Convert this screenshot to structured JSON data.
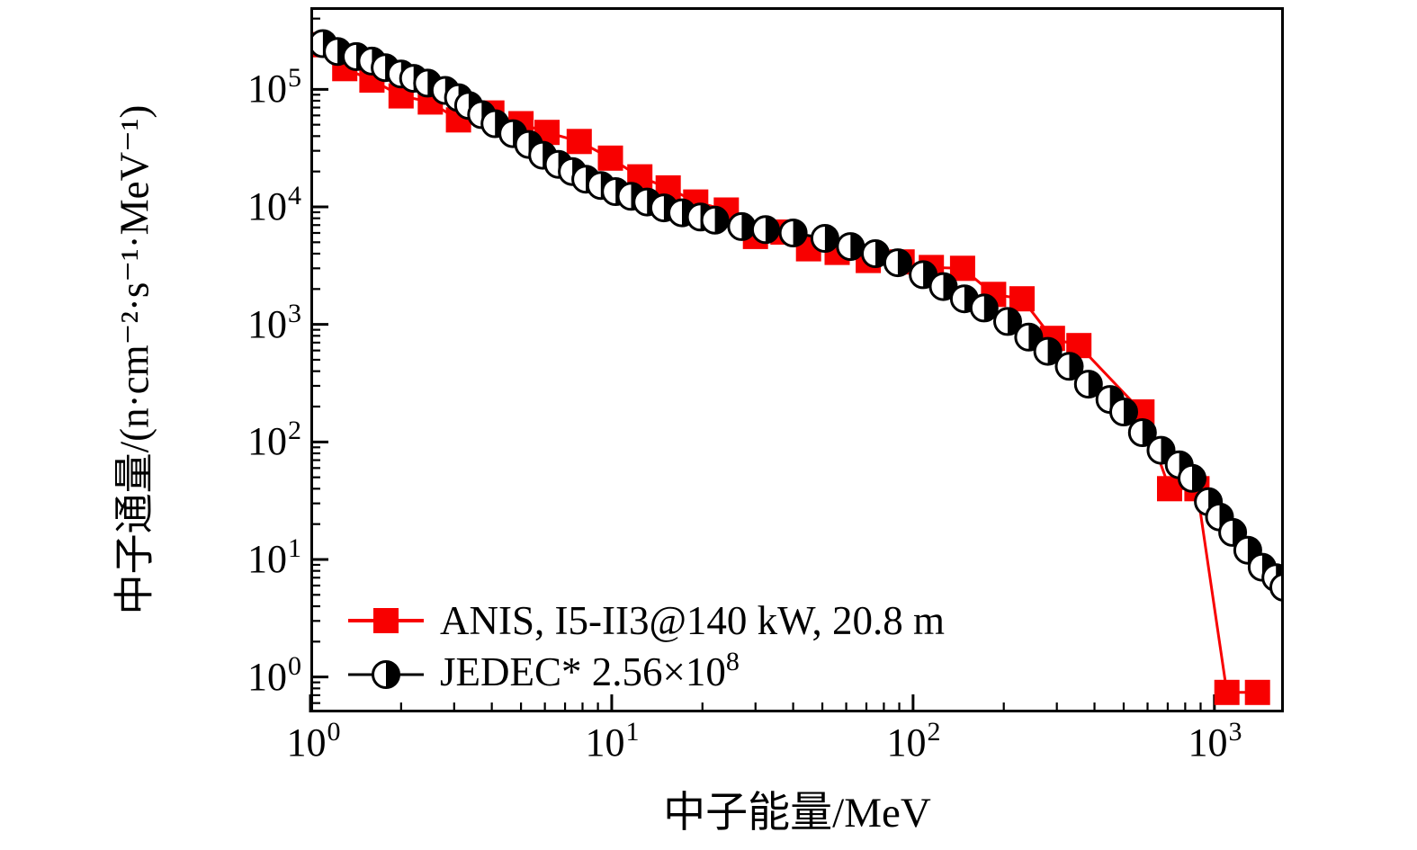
{
  "figure": {
    "background": "#ffffff",
    "axis_color": "#000000",
    "x_axis": {
      "label": "中子能量/MeV",
      "ticks": [
        {
          "base": "10",
          "exp": "0"
        },
        {
          "base": "10",
          "exp": "1"
        },
        {
          "base": "10",
          "exp": "2"
        },
        {
          "base": "10",
          "exp": "3"
        }
      ]
    },
    "y_axis": {
      "label": "中子通量/(n·cm⁻²·s⁻¹·MeV⁻¹)",
      "ticks": [
        {
          "base": "10",
          "exp": "5"
        },
        {
          "base": "10",
          "exp": "4"
        },
        {
          "base": "10",
          "exp": "3"
        },
        {
          "base": "10",
          "exp": "2"
        },
        {
          "base": "10",
          "exp": "1"
        },
        {
          "base": "10",
          "exp": "0"
        }
      ]
    },
    "legend": {
      "entries": [
        {
          "label": "ANIS, I5-II3@140 kW, 20.8 m",
          "label_exp": "",
          "marker": "red-filled-square",
          "color": "#f80000"
        },
        {
          "label": "JEDEC* 2.56×10",
          "label_exp": "8",
          "marker": "black-half-filled-circle",
          "color": "#000000"
        }
      ]
    }
  },
  "chart_data": {
    "type": "line",
    "title": "",
    "xlabel": "中子能量/MeV",
    "ylabel": "中子通量/(n·cm⁻²·s⁻¹·MeV⁻¹)",
    "x_scale": "log",
    "y_scale": "log",
    "xlim": [
      1,
      1700
    ],
    "ylim": [
      0.5,
      500000
    ],
    "x_major_ticks": [
      1,
      10,
      100,
      1000
    ],
    "y_major_ticks": [
      1,
      10,
      100,
      1000,
      10000,
      100000
    ],
    "grid": false,
    "legend_position": "lower left",
    "series": [
      {
        "name": "ANIS, I5-II3@140 kW, 20.8 m",
        "color": "#f80000",
        "marker": "filled-square",
        "line_width": 3,
        "x": [
          1.05,
          1.3,
          1.6,
          2.0,
          2.5,
          3.1,
          4.0,
          5.0,
          6.1,
          7.8,
          9.9,
          12.4,
          15.4,
          19,
          24,
          30,
          37,
          45,
          56,
          71,
          92,
          115,
          146,
          185,
          230,
          290,
          355,
          575,
          710,
          875,
          1100,
          1390
        ],
        "y": [
          240000,
          150000,
          120000,
          88000,
          78000,
          55000,
          63000,
          51000,
          43000,
          36000,
          26000,
          18000,
          14500,
          11000,
          9400,
          5600,
          6100,
          4400,
          4100,
          3500,
          3400,
          3050,
          3000,
          1800,
          1650,
          760,
          660,
          180,
          40,
          40,
          0.74,
          0.74
        ]
      },
      {
        "name": "JEDEC* 2.56×10^8",
        "color": "#000000",
        "marker": "half-filled-circle",
        "line_width": 3,
        "x": [
          1.1,
          1.23,
          1.42,
          1.6,
          1.77,
          2.0,
          2.2,
          2.45,
          2.8,
          3.1,
          3.35,
          3.7,
          4.1,
          4.7,
          5.3,
          5.9,
          6.65,
          7.4,
          8.2,
          9.2,
          10.3,
          11.6,
          13.1,
          14.9,
          17.1,
          19.7,
          22,
          27,
          32.4,
          40,
          51,
          62,
          75,
          89,
          108,
          126,
          148,
          172,
          206,
          242,
          280,
          330,
          382,
          450,
          500,
          577,
          665,
          764,
          843,
          955,
          1040,
          1150,
          1290,
          1440,
          1600,
          1700
        ],
        "y": [
          245000,
          210000,
          190000,
          174000,
          153000,
          135000,
          124000,
          113000,
          98000,
          85000,
          73000,
          61000,
          51000,
          42000,
          34000,
          27500,
          23000,
          20000,
          17200,
          15200,
          13500,
          12300,
          11000,
          9800,
          8900,
          8200,
          7700,
          6800,
          6400,
          6000,
          5400,
          4600,
          4000,
          3350,
          2650,
          2100,
          1650,
          1380,
          1060,
          780,
          590,
          440,
          310,
          230,
          180,
          120,
          85,
          64,
          49,
          31,
          23,
          17,
          12,
          8.6,
          7.0,
          5.8
        ]
      }
    ]
  }
}
